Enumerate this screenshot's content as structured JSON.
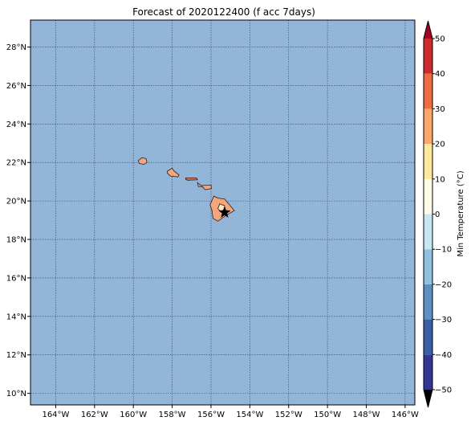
{
  "title": "Forecast of 2020122400 (f acc 7days)",
  "map": {
    "lon_range": [
      -165.3,
      -145.5
    ],
    "lat_range": [
      9.4,
      29.4
    ],
    "x_ticks": [
      {
        "lon": -164,
        "label": "164°W"
      },
      {
        "lon": -162,
        "label": "162°W"
      },
      {
        "lon": -160,
        "label": "160°W"
      },
      {
        "lon": -158,
        "label": "158°W"
      },
      {
        "lon": -156,
        "label": "156°W"
      },
      {
        "lon": -154,
        "label": "154°W"
      },
      {
        "lon": -152,
        "label": "152°W"
      },
      {
        "lon": -150,
        "label": "150°W"
      },
      {
        "lon": -148,
        "label": "148°W"
      },
      {
        "lon": -146,
        "label": "146°W"
      }
    ],
    "y_ticks": [
      {
        "lat": 10,
        "label": "10°N"
      },
      {
        "lat": 12,
        "label": "12°N"
      },
      {
        "lat": 14,
        "label": "14°N"
      },
      {
        "lat": 16,
        "label": "16°N"
      },
      {
        "lat": 18,
        "label": "18°N"
      },
      {
        "lat": 20,
        "label": "20°N"
      },
      {
        "lat": 22,
        "label": "22°N"
      },
      {
        "lat": 24,
        "label": "24°N"
      },
      {
        "lat": 26,
        "label": "26°N"
      },
      {
        "lat": 28,
        "label": "28°N"
      }
    ],
    "ocean_color": "#93b5d8",
    "gridlines": "dotted",
    "islands": [
      {
        "name": "kauai",
        "color": "#f4a57c",
        "coords": [
          [
            -159.75,
            22.1
          ],
          [
            -159.55,
            22.25
          ],
          [
            -159.35,
            22.2
          ],
          [
            -159.3,
            22.0
          ],
          [
            -159.45,
            21.9
          ],
          [
            -159.7,
            21.95
          ]
        ]
      },
      {
        "name": "oahu",
        "color": "#f4a57c",
        "coords": [
          [
            -158.25,
            21.55
          ],
          [
            -158.0,
            21.7
          ],
          [
            -157.9,
            21.55
          ],
          [
            -157.65,
            21.35
          ],
          [
            -157.7,
            21.25
          ],
          [
            -158.1,
            21.3
          ],
          [
            -158.25,
            21.45
          ]
        ]
      },
      {
        "name": "molokai",
        "color": "#e8714f",
        "coords": [
          [
            -157.3,
            21.2
          ],
          [
            -156.75,
            21.2
          ],
          [
            -156.7,
            21.1
          ],
          [
            -157.2,
            21.08
          ],
          [
            -157.3,
            21.12
          ]
        ]
      },
      {
        "name": "maui",
        "color": "#f4a57c",
        "coords": [
          [
            -156.7,
            20.95
          ],
          [
            -156.5,
            20.8
          ],
          [
            -156.0,
            20.82
          ],
          [
            -155.98,
            20.65
          ],
          [
            -156.3,
            20.58
          ],
          [
            -156.45,
            20.75
          ],
          [
            -156.65,
            20.75
          ]
        ]
      },
      {
        "name": "hawaii",
        "color": "#f4a57c",
        "coords": [
          [
            -155.85,
            20.25
          ],
          [
            -155.65,
            20.15
          ],
          [
            -155.3,
            20.1
          ],
          [
            -155.05,
            19.8
          ],
          [
            -154.8,
            19.5
          ],
          [
            -155.3,
            19.2
          ],
          [
            -155.65,
            18.95
          ],
          [
            -155.9,
            19.1
          ],
          [
            -155.95,
            19.5
          ],
          [
            -156.05,
            19.8
          ]
        ]
      },
      {
        "name": "hawaii-summit",
        "color": "#fde6b8",
        "coords": [
          [
            -155.55,
            19.85
          ],
          [
            -155.3,
            19.75
          ],
          [
            -155.3,
            19.55
          ],
          [
            -155.5,
            19.45
          ],
          [
            -155.65,
            19.6
          ]
        ]
      }
    ],
    "marker": {
      "symbol": "star",
      "lon": -155.3,
      "lat": 19.4,
      "color": "#000000"
    }
  },
  "colorbar": {
    "label": "Min Temperature (°C)",
    "min": -50,
    "max": 50,
    "extend": "both",
    "tick_labels": [
      {
        "value": -50,
        "label": "−50"
      },
      {
        "value": -40,
        "label": "−40"
      },
      {
        "value": -30,
        "label": "−30"
      },
      {
        "value": -20,
        "label": "−20"
      },
      {
        "value": -10,
        "label": "−10"
      },
      {
        "value": 0,
        "label": "0"
      },
      {
        "value": 10,
        "label": "10"
      },
      {
        "value": 20,
        "label": "20"
      },
      {
        "value": 30,
        "label": "30"
      },
      {
        "value": 40,
        "label": "40"
      },
      {
        "value": 50,
        "label": "50"
      }
    ],
    "bins": [
      {
        "from": -50,
        "to": -40,
        "color": "#313695"
      },
      {
        "from": -40,
        "to": -30,
        "color": "#3a5fa8"
      },
      {
        "from": -30,
        "to": -20,
        "color": "#5b90c2"
      },
      {
        "from": -20,
        "to": -10,
        "color": "#8ec2de"
      },
      {
        "from": -10,
        "to": 0,
        "color": "#c6e7f1"
      },
      {
        "from": 0,
        "to": 10,
        "color": "#fffde8"
      },
      {
        "from": 10,
        "to": 20,
        "color": "#fee99a"
      },
      {
        "from": 20,
        "to": 30,
        "color": "#fca66a"
      },
      {
        "from": 30,
        "to": 40,
        "color": "#ef6c43"
      },
      {
        "from": 40,
        "to": 50,
        "color": "#cf2a2d"
      }
    ],
    "extend_low_color": "#000000",
    "extend_high_color": "#a50026"
  }
}
